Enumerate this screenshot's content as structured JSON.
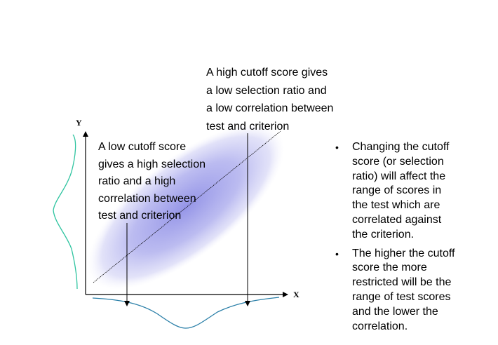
{
  "axes": {
    "x_label": "X",
    "y_label": "Y"
  },
  "annotations": {
    "high_cutoff": [
      "A high cutoff score gives",
      "a low selection ratio and",
      "a low correlation between",
      "test and criterion"
    ],
    "low_cutoff": [
      "A low cutoff score",
      "gives a high selection",
      "ratio and a high",
      "correlation between",
      "test and criterion"
    ]
  },
  "bullets": [
    {
      "marker": "•",
      "lines": [
        "Changing the cutoff",
        "score (or selection",
        "ratio) will affect the",
        "range of scores in",
        "the test which are",
        "correlated against",
        "the criterion."
      ]
    },
    {
      "marker": "•",
      "lines": [
        "The higher the cutoff",
        "score the more",
        "restricted will be the",
        "range of test scores",
        "and the lower the",
        "correlation."
      ]
    }
  ],
  "colors": {
    "ellipse_center": "#8f8fe6",
    "ellipse_edge": "#ffffff",
    "distribution_x": "#2a7fa8",
    "distribution_y": "#2fc4a0",
    "axis": "#000000"
  }
}
